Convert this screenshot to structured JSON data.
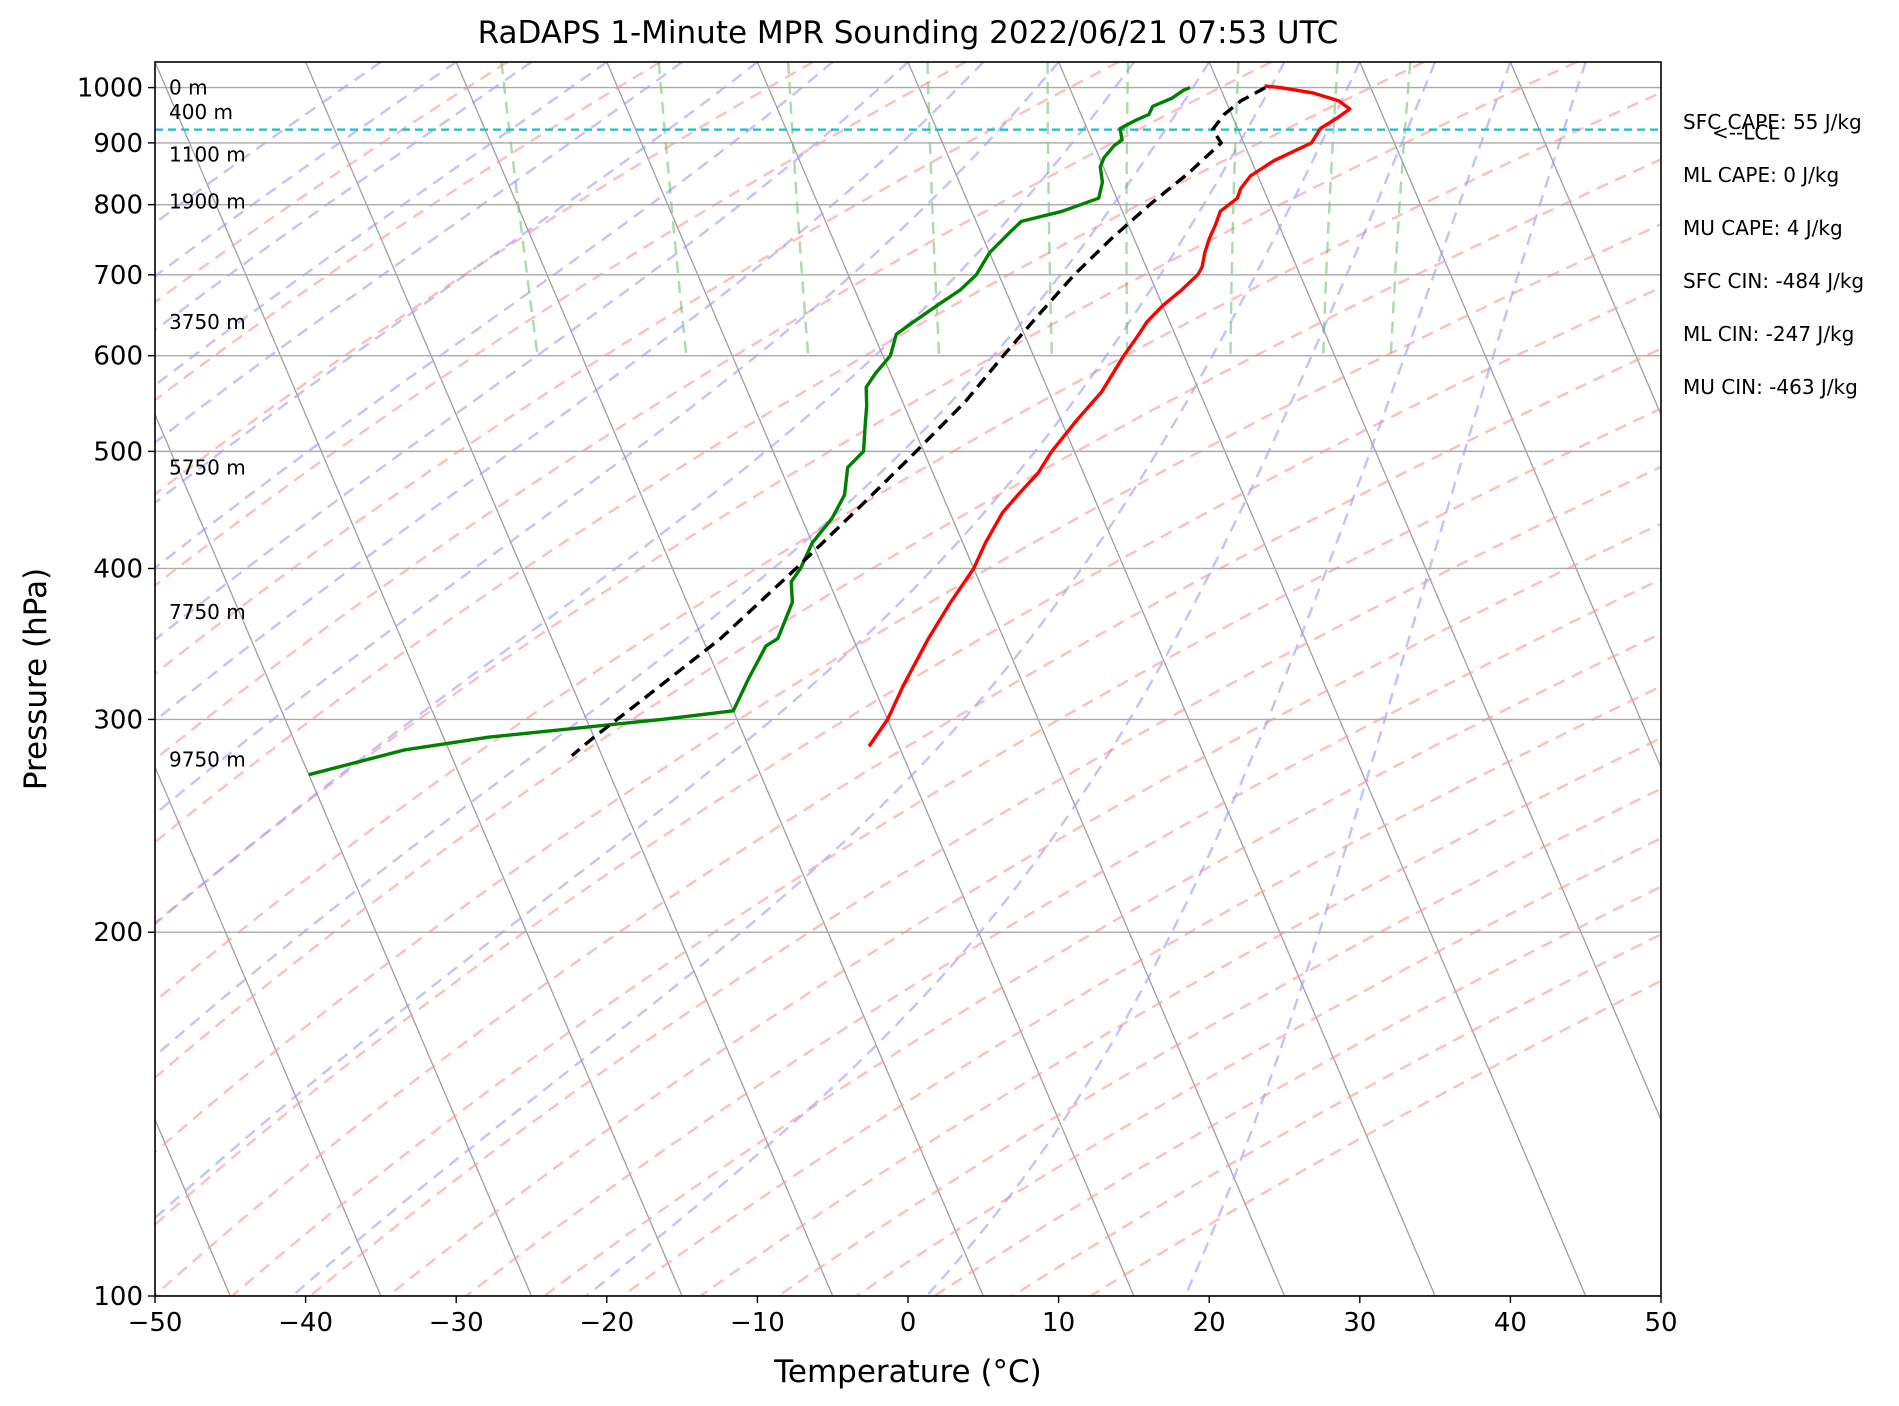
{
  "chart_data": {
    "type": "line",
    "title": "RaDAPS 1-Minute MPR Sounding 2022/06/21 07:53 UTC",
    "xlabel": "Temperature (°C)",
    "ylabel": "Pressure (hPa)",
    "xlim": [
      -50,
      50
    ],
    "ylim": [
      1050,
      100
    ],
    "y_scale": "log",
    "skew": "skew-T",
    "grid": true,
    "x_ticks": [
      -50,
      -40,
      -30,
      -20,
      -10,
      0,
      10,
      20,
      30,
      40,
      50
    ],
    "x_tick_labels": [
      "−50",
      "−40",
      "−30",
      "−20",
      "−10",
      "0",
      "10",
      "20",
      "30",
      "40",
      "50"
    ],
    "y_ticks": [
      100,
      200,
      300,
      400,
      500,
      600,
      700,
      800,
      900,
      1000
    ],
    "y_tick_labels": [
      "100",
      "200",
      "300",
      "400",
      "500",
      "600",
      "700",
      "800",
      "900",
      "1000"
    ],
    "height_labels": [
      {
        "p": 1000,
        "text": "0 m"
      },
      {
        "p": 955,
        "text": "400 m"
      },
      {
        "p": 880,
        "text": "1100 m"
      },
      {
        "p": 805,
        "text": "1900 m"
      },
      {
        "p": 640,
        "text": "3750 m"
      },
      {
        "p": 485,
        "text": "5750 m"
      },
      {
        "p": 368,
        "text": "7750 m"
      },
      {
        "p": 278,
        "text": "9750 m"
      }
    ],
    "stats": [
      "SFC CAPE: 55 J/kg",
      "ML CAPE: 0 J/kg",
      "MU CAPE: 4 J/kg",
      "SFC CIN: -484 J/kg",
      "ML CIN: -247 J/kg",
      "MU CIN: -463 J/kg"
    ],
    "lcl": {
      "p": 923,
      "label": "<--LCL",
      "color": "#17becf"
    },
    "series": [
      {
        "kind": "temperature",
        "color": "#ff0000",
        "style": "solid",
        "points": [
          [
            1003,
            23
          ],
          [
            1000,
            24
          ],
          [
            990,
            26
          ],
          [
            975,
            27.5
          ],
          [
            960,
            28
          ],
          [
            945,
            27
          ],
          [
            925,
            25.5
          ],
          [
            900,
            24.5
          ],
          [
            870,
            21.5
          ],
          [
            845,
            19.5
          ],
          [
            825,
            18.5
          ],
          [
            810,
            18
          ],
          [
            790,
            16.5
          ],
          [
            770,
            15.8
          ],
          [
            750,
            15
          ],
          [
            730,
            14.3
          ],
          [
            710,
            13.7
          ],
          [
            700,
            13.2
          ],
          [
            680,
            11.7
          ],
          [
            660,
            10
          ],
          [
            640,
            8.5
          ],
          [
            620,
            7.3
          ],
          [
            600,
            6
          ],
          [
            560,
            3.5
          ],
          [
            530,
            1
          ],
          [
            500,
            -1.5
          ],
          [
            480,
            -3
          ],
          [
            460,
            -5
          ],
          [
            445,
            -6.5
          ],
          [
            420,
            -8.5
          ],
          [
            400,
            -10
          ],
          [
            375,
            -12.5
          ],
          [
            350,
            -15
          ],
          [
            320,
            -18
          ],
          [
            300,
            -20
          ],
          [
            285,
            -22
          ]
        ]
      },
      {
        "kind": "dewpoint",
        "color": "#008000",
        "style": "solid",
        "points": [
          [
            1000,
            18
          ],
          [
            995,
            17.5
          ],
          [
            980,
            16.5
          ],
          [
            965,
            15
          ],
          [
            950,
            14.5
          ],
          [
            940,
            13.5
          ],
          [
            925,
            12.2
          ],
          [
            905,
            12
          ],
          [
            895,
            11.3
          ],
          [
            875,
            10.3
          ],
          [
            860,
            9.8
          ],
          [
            835,
            9.5
          ],
          [
            810,
            8.8
          ],
          [
            790,
            6
          ],
          [
            775,
            3
          ],
          [
            760,
            2
          ],
          [
            730,
            0
          ],
          [
            700,
            -1.5
          ],
          [
            680,
            -3
          ],
          [
            660,
            -5
          ],
          [
            640,
            -7
          ],
          [
            625,
            -8.5
          ],
          [
            600,
            -9.5
          ],
          [
            580,
            -11
          ],
          [
            565,
            -12
          ],
          [
            545,
            -12.5
          ],
          [
            530,
            -13
          ],
          [
            500,
            -14
          ],
          [
            485,
            -15.5
          ],
          [
            460,
            -16.5
          ],
          [
            440,
            -18
          ],
          [
            420,
            -20
          ],
          [
            400,
            -21.5
          ],
          [
            390,
            -22.5
          ],
          [
            375,
            -23
          ],
          [
            350,
            -25
          ],
          [
            345,
            -26
          ],
          [
            325,
            -28
          ],
          [
            305,
            -30
          ],
          [
            300,
            -35
          ],
          [
            290,
            -47
          ],
          [
            283,
            -53
          ],
          [
            270,
            -60
          ]
        ]
      },
      {
        "kind": "parcel",
        "color": "#000000",
        "style": "dashed",
        "points": [
          [
            1000,
            23
          ],
          [
            975,
            21
          ],
          [
            950,
            19.5
          ],
          [
            923,
            18.3
          ],
          [
            900,
            18.5
          ],
          [
            850,
            15.5
          ],
          [
            800,
            12
          ],
          [
            750,
            8.5
          ],
          [
            700,
            5
          ],
          [
            650,
            1.6
          ],
          [
            600,
            -2
          ],
          [
            550,
            -5.8
          ],
          [
            500,
            -10.5
          ],
          [
            450,
            -15.8
          ],
          [
            400,
            -21.8
          ],
          [
            350,
            -28.8
          ],
          [
            310,
            -36
          ],
          [
            290,
            -40
          ],
          [
            280,
            -42
          ]
        ]
      }
    ],
    "background_lines": {
      "dry_adiabats_color": "#ff9999",
      "moist_adiabats_color": "#9999ff",
      "mixing_ratio_color": "#66bb66",
      "isotherms_color": "#888888"
    }
  }
}
